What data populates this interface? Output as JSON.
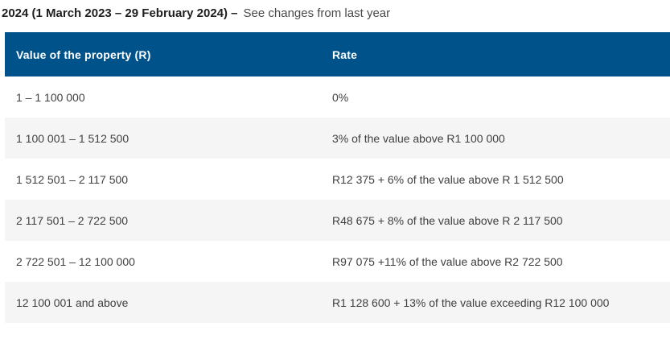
{
  "title": {
    "bold": "2024 (1 March 2023 – 29 February 2024) –",
    "link": "See changes from last year"
  },
  "table": {
    "headers": [
      "Value of the property (R)",
      "Rate"
    ],
    "rows": [
      [
        "1 – 1 100 000",
        "0%"
      ],
      [
        "1 100 001 – 1 512 500",
        "3% of the value above R1 100 000"
      ],
      [
        "1 512 501 – 2 117 500",
        "R12 375 + 6% of the value above R 1 512 500"
      ],
      [
        "2 117 501 – 2 722 500",
        "R48 675 + 8% of the value above R 2 117 500"
      ],
      [
        "2 722 501 – 12 100 000",
        "R97 075 +11% of the value above R2 722 500"
      ],
      [
        "12 100 001 and above",
        "R1 128 600 + 13% of the value exceeding R12 100 000"
      ]
    ]
  },
  "colors": {
    "header_bg": "#00538a",
    "row_alt_bg": "#f5f5f5",
    "body_text": "#404040",
    "header_text": "#ffffff"
  }
}
